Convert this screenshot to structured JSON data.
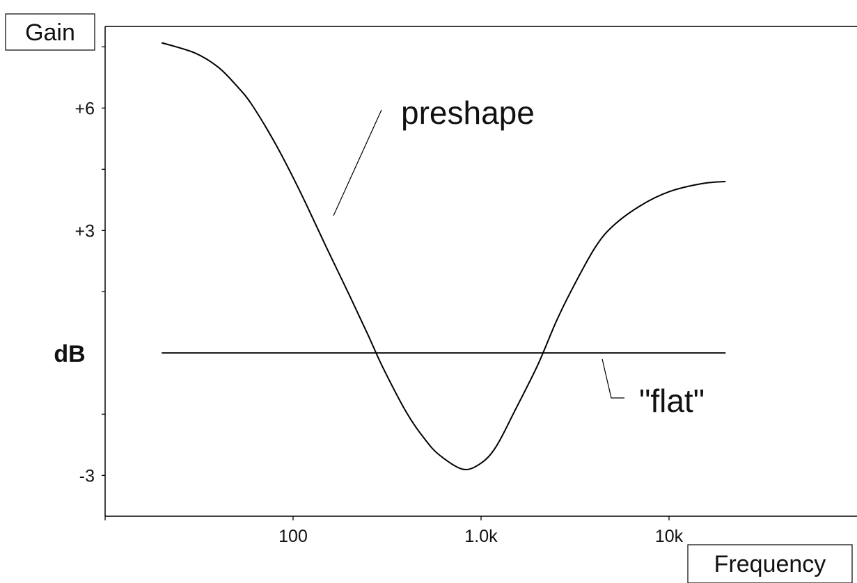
{
  "chart_data": {
    "type": "line",
    "title": "",
    "ylabel": "Gain",
    "xlabel": "Frequency",
    "unit_label": "dB",
    "x_scale": "log",
    "xlim": [
      10,
      100000
    ],
    "ylim": [
      -4,
      8
    ],
    "x_tick_labels": [
      {
        "value": 100,
        "label": "100"
      },
      {
        "value": 1000,
        "label": "1.0k"
      },
      {
        "value": 10000,
        "label": "10k"
      }
    ],
    "y_tick_labels": [
      {
        "value": 6,
        "label": "+6"
      },
      {
        "value": 3,
        "label": "+3"
      },
      {
        "value": -3,
        "label": "-3"
      }
    ],
    "x_minor_ticks": [],
    "y_minor_ticks": [
      7.5,
      4.5,
      1.5,
      -1.5
    ],
    "grid": false,
    "series": [
      {
        "name": "preshape",
        "color": "#000000",
        "x": [
          20,
          30,
          40,
          50,
          60,
          80,
          100,
          120,
          150,
          200,
          250,
          300,
          400,
          500,
          600,
          800,
          1000,
          1200,
          1500,
          2000,
          2500,
          3000,
          4000,
          5000,
          7000,
          10000,
          15000,
          20000
        ],
        "y": [
          7.6,
          7.35,
          7.0,
          6.55,
          6.1,
          5.15,
          4.3,
          3.55,
          2.6,
          1.4,
          0.45,
          -0.35,
          -1.45,
          -2.1,
          -2.5,
          -2.85,
          -2.7,
          -2.3,
          -1.45,
          -0.3,
          0.75,
          1.5,
          2.55,
          3.1,
          3.6,
          3.95,
          4.15,
          4.2
        ]
      },
      {
        "name": "\"flat\"",
        "color": "#000000",
        "x": [
          20,
          20000
        ],
        "y": [
          0,
          0
        ]
      }
    ],
    "annotations": [
      {
        "text": "preshape",
        "series": "preshape"
      },
      {
        "text": "\"flat\"",
        "series": "\"flat\""
      }
    ]
  }
}
